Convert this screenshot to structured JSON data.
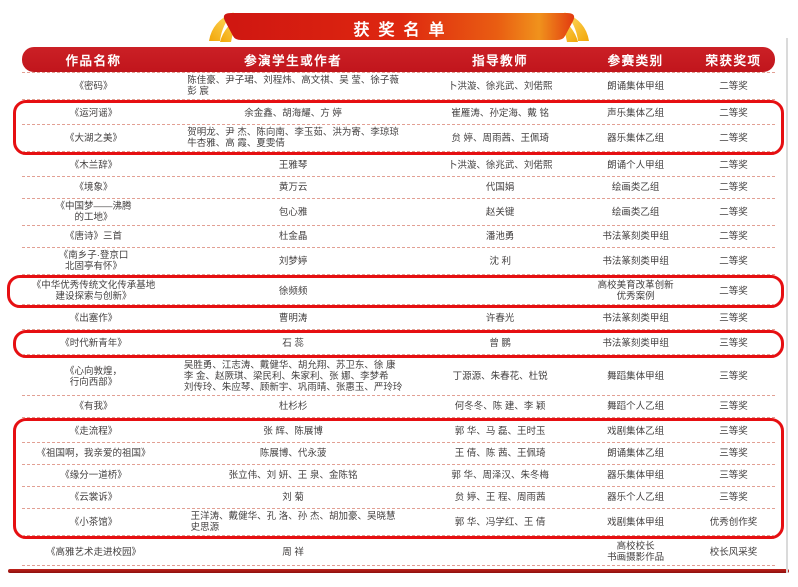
{
  "page": {
    "banner_title": "获奖名单"
  },
  "colors": {
    "banner_red": "#d81b10",
    "banner_gold": "#f6b313",
    "header_red": "#c1151c",
    "highlight_red": "#e60f12",
    "dashed_line": "#e2a094",
    "body_text": "#423f3f",
    "bottom_rule": "#8e100f"
  },
  "table": {
    "headers": [
      "作品名称",
      "参演学生或作者",
      "指导教师",
      "参赛类别",
      "荣获奖项"
    ],
    "rows": [
      {
        "title": [
          "《密码》"
        ],
        "students": [
          "陈佳豪、尹子珺、刘程炜、高文祺、吴 莹、徐子薇",
          "彭 宸"
        ],
        "teachers": [
          "卜洪漩、徐兆武、刘偌熙"
        ],
        "category": [
          "朗诵集体甲组"
        ],
        "award": "二等奖",
        "highlight": null
      },
      {
        "title": [
          "《运河谣》"
        ],
        "students": [
          "余金鑫、胡海耀、方 婷"
        ],
        "teachers": [
          "崔雁涛、孙定海、戴 铭"
        ],
        "category": [
          "声乐集体乙组"
        ],
        "award": "二等奖",
        "highlight": "A"
      },
      {
        "title": [
          "《大湖之美》"
        ],
        "students": [
          "贺明龙、尹 杰、陈向南、李玉茹、洪为寄、李琼琼",
          "牛杏雅、高 霞、夏雯倩"
        ],
        "teachers": [
          "贠 婷、周雨茜、王佩琦"
        ],
        "category": [
          "器乐集体乙组"
        ],
        "award": "二等奖",
        "highlight": "A"
      },
      {
        "title": [
          "《木兰辞》"
        ],
        "students": [
          "王雅琴"
        ],
        "teachers": [
          "卜洪漩、徐兆武、刘偌熙"
        ],
        "category": [
          "朗诵个人甲组"
        ],
        "award": "二等奖",
        "highlight": null
      },
      {
        "title": [
          "《境象》"
        ],
        "students": [
          "黄万云"
        ],
        "teachers": [
          "代国娟"
        ],
        "category": [
          "绘画类乙组"
        ],
        "award": "二等奖",
        "highlight": null
      },
      {
        "title": [
          "《中国梦——沸腾",
          "的工地》"
        ],
        "students": [
          "包心雅"
        ],
        "teachers": [
          "赵关键"
        ],
        "category": [
          "绘画类乙组"
        ],
        "award": "二等奖",
        "highlight": null
      },
      {
        "title": [
          "《唐诗》三首"
        ],
        "students": [
          "杜金晶"
        ],
        "teachers": [
          "潘池勇"
        ],
        "category": [
          "书法篆刻类甲组"
        ],
        "award": "二等奖",
        "highlight": null
      },
      {
        "title": [
          "《南乡子·登京口",
          "北固亭有怀》"
        ],
        "students": [
          "刘梦婷"
        ],
        "teachers": [
          "沈 利"
        ],
        "category": [
          "书法篆刻类甲组"
        ],
        "award": "二等奖",
        "highlight": null
      },
      {
        "title": [
          "《中华优秀传统文化传承基地",
          "建设探索与创新》"
        ],
        "students": [
          "徐频频"
        ],
        "teachers": [],
        "category": [
          "高校美育改革创新",
          "优秀案例"
        ],
        "award": "二等奖",
        "highlight": "B"
      },
      {
        "title": [
          "《出塞作》"
        ],
        "students": [
          "曹明涛"
        ],
        "teachers": [
          "许春光"
        ],
        "category": [
          "书法篆刻类甲组"
        ],
        "award": "三等奖",
        "highlight": null
      },
      {
        "title": [
          "《时代新青年》"
        ],
        "students": [
          "石 蕊"
        ],
        "teachers": [
          "曾 鹏"
        ],
        "category": [
          "书法篆刻类甲组"
        ],
        "award": "三等奖",
        "highlight": "C"
      },
      {
        "title": [
          "《心向敦煌，",
          "行向西部》"
        ],
        "students": [
          "吴胜勇、江志涛、戴健华、胡允翔、苏卫东、徐 康",
          "李 金、赵厥琪、梁民利、朱家利、张 娜、李梦希",
          "刘传玲、朱应琴、顾新宇、巩雨晴、张惠玉、严玲玲"
        ],
        "teachers": [
          "丁源源、朱春花、杜锐"
        ],
        "category": [
          "舞蹈集体甲组"
        ],
        "award": "三等奖",
        "highlight": null
      },
      {
        "title": [
          "《有我》"
        ],
        "students": [
          "杜杉杉"
        ],
        "teachers": [
          "何冬冬、陈 建、李 颖"
        ],
        "category": [
          "舞蹈个人乙组"
        ],
        "award": "三等奖",
        "highlight": null
      },
      {
        "title": [
          "《走流程》"
        ],
        "students": [
          "张 辉、陈展博"
        ],
        "teachers": [
          "郭 华、马 磊、王时玉"
        ],
        "category": [
          "戏剧集体乙组"
        ],
        "award": "三等奖",
        "highlight": "D"
      },
      {
        "title": [
          "《祖国啊，我亲爱的祖国》"
        ],
        "students": [
          "陈展博、代永菠"
        ],
        "teachers": [
          "王 倩、陈 茜、王佩琦"
        ],
        "category": [
          "朗诵集体乙组"
        ],
        "award": "三等奖",
        "highlight": "D"
      },
      {
        "title": [
          "《缘分一道桥》"
        ],
        "students": [
          "张立伟、刘 妍、王 泉、金陈铭"
        ],
        "teachers": [
          "郭 华、周泽汉、朱冬梅"
        ],
        "category": [
          "器乐集体甲组"
        ],
        "award": "三等奖",
        "highlight": "D"
      },
      {
        "title": [
          "《云裳诉》"
        ],
        "students": [
          "刘 菊"
        ],
        "teachers": [
          "贠 婷、王 程、周雨茜"
        ],
        "category": [
          "器乐个人乙组"
        ],
        "award": "三等奖",
        "highlight": "D"
      },
      {
        "title": [
          "《小茶馆》"
        ],
        "students": [
          "王洋涛、戴健华、孔 洛、孙 杰、胡加豪、吴晓慧",
          "史思源"
        ],
        "teachers": [
          "郭 华、冯学红、王 倩"
        ],
        "category": [
          "戏剧集体甲组"
        ],
        "award": "优秀创作奖",
        "highlight": "D"
      },
      {
        "title": [
          "《高雅艺术走进校园》"
        ],
        "students": [
          "周 祥"
        ],
        "teachers": [],
        "category": [
          "高校校长",
          "书画摄影作品"
        ],
        "award": "校长风采奖",
        "highlight": null
      }
    ]
  }
}
